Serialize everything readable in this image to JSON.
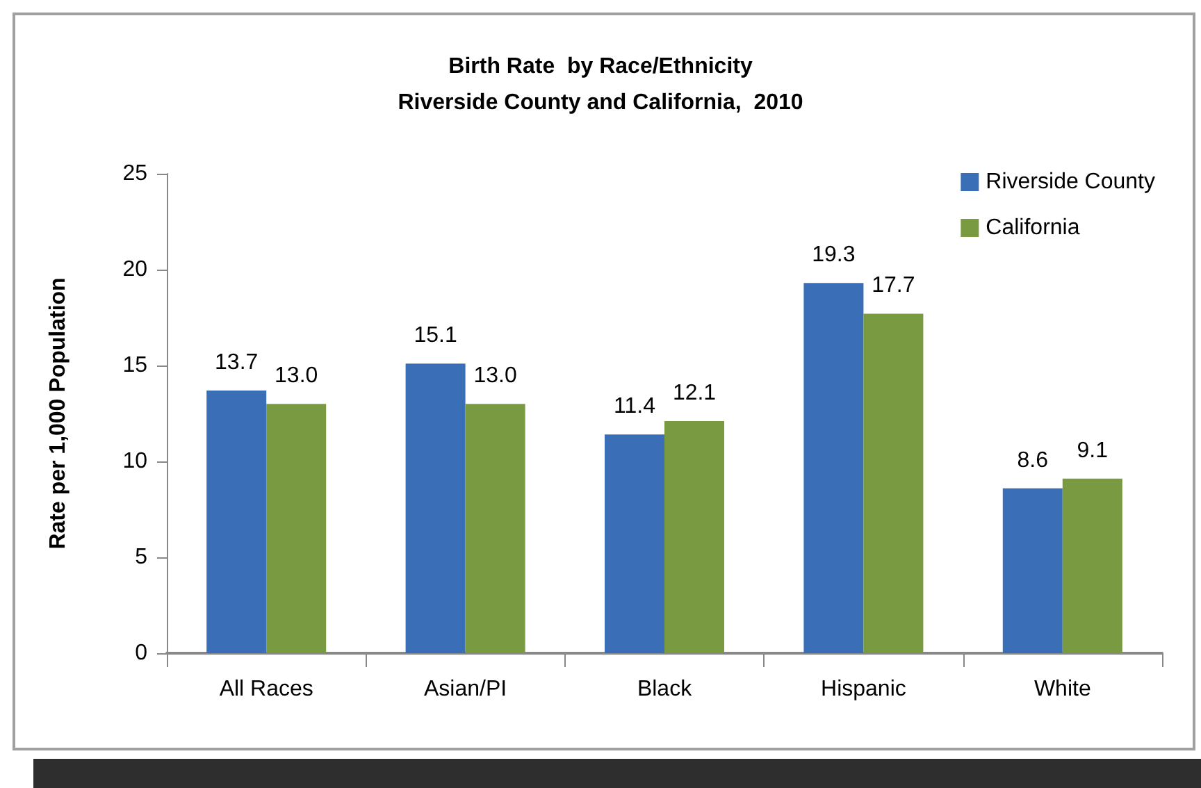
{
  "chart_data": {
    "type": "bar",
    "title": "Birth Rate  by Race/Ethnicity\nRiverside County and California,  2010",
    "ylabel": "Rate per 1,000 Population",
    "categories": [
      "All Races",
      "Asian/PI",
      "Black",
      "Hispanic",
      "White"
    ],
    "series": [
      {
        "name": "Riverside County",
        "color": "#3a6fb7",
        "values": [
          13.7,
          15.1,
          11.4,
          19.3,
          8.6
        ],
        "value_labels": [
          "13.7",
          "15.1",
          "11.4",
          "19.3",
          "8.6"
        ]
      },
      {
        "name": "California",
        "color": "#7a9a42",
        "values": [
          13.0,
          13.0,
          12.1,
          17.7,
          9.1
        ],
        "value_labels": [
          "13.0",
          "13.0",
          "12.1",
          "17.7",
          "9.1"
        ]
      }
    ],
    "ylim": [
      0,
      25
    ],
    "yticks": [
      0,
      5,
      10,
      15,
      20,
      25
    ],
    "grid": false,
    "legend": "top right"
  }
}
